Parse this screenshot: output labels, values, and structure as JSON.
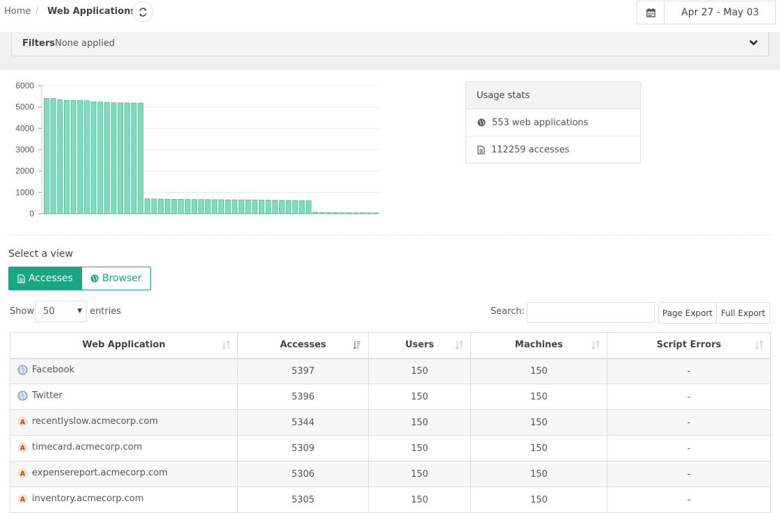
{
  "breadcrumb": {
    "home": "Home",
    "separator": "/",
    "current": "Web Applications"
  },
  "date_range": "Apr 27 - May 03",
  "filters": {
    "label": "Filters",
    "value": "None applied"
  },
  "usage_stats": {
    "title": "Usage stats",
    "web_apps": "553 web applications",
    "accesses": "112259 accesses"
  },
  "chart_data": {
    "type": "bar",
    "title": "",
    "xlabel": "",
    "ylabel": "",
    "ylim": [
      0,
      6000
    ],
    "yticks": [
      0,
      1000,
      2000,
      3000,
      4000,
      5000,
      6000
    ],
    "grid": true,
    "color": "#7fdcbd",
    "values": [
      5397,
      5396,
      5344,
      5309,
      5306,
      5305,
      5290,
      5240,
      5230,
      5215,
      5200,
      5195,
      5190,
      5185,
      5180,
      700,
      690,
      685,
      680,
      675,
      670,
      668,
      665,
      662,
      660,
      658,
      655,
      652,
      650,
      648,
      646,
      644,
      640,
      636,
      632,
      628,
      624,
      620,
      615,
      610,
      70,
      60,
      55,
      50,
      48,
      46,
      44,
      42,
      40,
      38
    ]
  },
  "view": {
    "label": "Select a view",
    "accesses": "Accesses",
    "browser": "Browser"
  },
  "controls": {
    "show": "Show",
    "entries_value": "50",
    "entries": "entries",
    "search": "Search:",
    "page_export": "Page Export",
    "full_export": "Full Export"
  },
  "table": {
    "headers": [
      "Web Application",
      "Accesses",
      "Users",
      "Machines",
      "Script Errors"
    ],
    "rows": [
      {
        "icon": "globe-icon",
        "name": "Facebook",
        "accesses": "5397",
        "users": "150",
        "machines": "150",
        "errors": "-"
      },
      {
        "icon": "globe-icon",
        "name": "Twitter",
        "accesses": "5396",
        "users": "150",
        "machines": "150",
        "errors": "-"
      },
      {
        "icon": "app-a-icon",
        "name": "recentlyslow.acmecorp.com",
        "accesses": "5344",
        "users": "150",
        "machines": "150",
        "errors": "-"
      },
      {
        "icon": "app-a-icon",
        "name": "timecard.acmecorp.com",
        "accesses": "5309",
        "users": "150",
        "machines": "150",
        "errors": "-"
      },
      {
        "icon": "app-a-icon",
        "name": "expensereport.acmecorp.com",
        "accesses": "5306",
        "users": "150",
        "machines": "150",
        "errors": "-"
      },
      {
        "icon": "app-a-icon",
        "name": "inventory.acmecorp.com",
        "accesses": "5305",
        "users": "150",
        "machines": "150",
        "errors": "-"
      }
    ]
  },
  "colors": {
    "accent": "#1aa584",
    "bar": "#7fdcbd"
  }
}
